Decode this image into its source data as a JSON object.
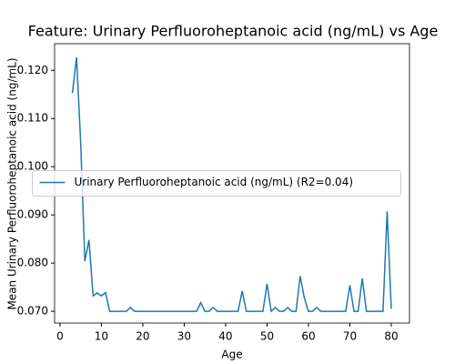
{
  "chart_data": {
    "type": "line",
    "title": "Feature: Urinary Perfluoroheptanoic acid (ng/mL) vs Age",
    "x_label": "Age",
    "y_label": "Mean Urinary Perfluoroheptanoic acid (ng/mL)",
    "x": [
      3,
      4,
      5,
      6,
      7,
      8,
      9,
      10,
      11,
      12,
      13,
      14,
      15,
      16,
      17,
      18,
      19,
      20,
      21,
      22,
      23,
      24,
      25,
      26,
      27,
      28,
      29,
      30,
      31,
      32,
      33,
      34,
      35,
      36,
      37,
      38,
      39,
      40,
      41,
      42,
      43,
      44,
      45,
      46,
      47,
      48,
      49,
      50,
      51,
      52,
      53,
      54,
      55,
      56,
      57,
      58,
      59,
      60,
      61,
      62,
      63,
      64,
      65,
      66,
      67,
      68,
      69,
      70,
      71,
      72,
      73,
      74,
      75,
      76,
      77,
      78,
      79,
      80
    ],
    "series": [
      {
        "name": "Urinary Perfluoroheptanoic acid (ng/mL) (R2=0.04)",
        "color": "#1f77b4",
        "values": [
          0.1153,
          0.1227,
          0.105,
          0.0804,
          0.0848,
          0.0732,
          0.0738,
          0.0732,
          0.0739,
          0.07,
          0.07,
          0.07,
          0.07,
          0.07,
          0.0708,
          0.07,
          0.07,
          0.07,
          0.07,
          0.07,
          0.07,
          0.07,
          0.07,
          0.07,
          0.07,
          0.07,
          0.07,
          0.07,
          0.07,
          0.07,
          0.07,
          0.0718,
          0.07,
          0.07,
          0.0708,
          0.07,
          0.07,
          0.07,
          0.07,
          0.07,
          0.07,
          0.0742,
          0.07,
          0.07,
          0.07,
          0.07,
          0.07,
          0.0757,
          0.07,
          0.0708,
          0.07,
          0.07,
          0.0708,
          0.07,
          0.07,
          0.0773,
          0.0728,
          0.07,
          0.07,
          0.0708,
          0.07,
          0.07,
          0.07,
          0.07,
          0.07,
          0.07,
          0.07,
          0.0754,
          0.07,
          0.07,
          0.0768,
          0.07,
          0.07,
          0.07,
          0.07,
          0.07,
          0.0907,
          0.0705
        ]
      }
    ],
    "xlim": [
      -1.3,
      84.4
    ],
    "ylim": [
      0.06756,
      0.12553
    ],
    "xticks": [
      0,
      10,
      20,
      30,
      40,
      50,
      60,
      70,
      80
    ],
    "yticks": [
      {
        "value": 0.07,
        "label": "0.070"
      },
      {
        "value": 0.08,
        "label": "0.080"
      },
      {
        "value": 0.09,
        "label": "0.090"
      },
      {
        "value": 0.1,
        "label": "0.100"
      },
      {
        "value": 0.11,
        "label": "0.110"
      },
      {
        "value": 0.12,
        "label": "0.120"
      }
    ],
    "legend": "center"
  }
}
